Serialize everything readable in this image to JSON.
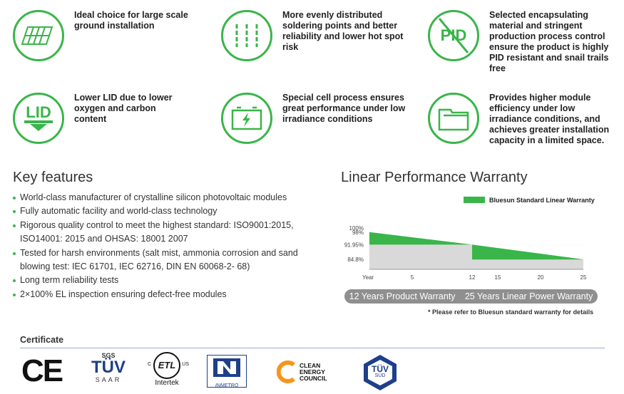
{
  "features": [
    {
      "text": "Ideal choice for large scale ground installation",
      "icon": "panels-icon"
    },
    {
      "text": "More evenly distributed soldering points and better reliability and lower hot spot risk",
      "icon": "solder-lines-icon"
    },
    {
      "text": "Selected encapsulating material and stringent production process control ensure the product is highly PID resistant and snail trails free",
      "icon": "pid-icon",
      "label": "PID"
    },
    {
      "text": "Lower LID due to lower oxygen and carbon content",
      "icon": "lid-icon",
      "label": "LID"
    },
    {
      "text": "Special cell process ensures great performance under low irradiance conditions",
      "icon": "battery-icon"
    },
    {
      "text": "Provides higher module efficiency under low irradiance conditions, and achieves greater installation capacity in a limited space.",
      "icon": "module-stack-icon"
    }
  ],
  "key_features": {
    "title": "Key features",
    "items": [
      "World-class manufacturer of crystalline silicon photovoltaic modules",
      "Fully automatic facility and world-class technology",
      "Rigorous quality control to meet the highest standard: ISO9001:2015, ISO14001: 2015 and OHSAS: 18001 2007",
      "Tested for harsh environments (salt mist, ammonia corrosion and sand blowing test: IEC 61701, IEC 62716, DIN EN 60068-2- 68)",
      "Long term reliability tests",
      "2×100% EL inspection ensuring defect-free modules"
    ]
  },
  "warranty": {
    "title": "Linear Performance Warranty",
    "pill_left": "12 Years Product Warranty",
    "pill_right": "25 Years Linear Power Warranty",
    "note": "* Please refer to Bluesun standard warranty for details"
  },
  "chart_data": {
    "type": "area",
    "xlabel": "Year",
    "x_ticks": [
      5,
      12,
      15,
      20,
      25
    ],
    "xlim": [
      0,
      25
    ],
    "y_ticks": [
      "100%",
      "98%",
      "91.95%",
      "84.8%"
    ],
    "series": [
      {
        "name": "Bluesun Standard Linear Warranty",
        "x": [
          0,
          12,
          12,
          25
        ],
        "y_top": [
          98,
          91.95,
          91.95,
          84.8
        ],
        "y_bottom": [
          91.95,
          91.95,
          84.8,
          84.8
        ]
      }
    ],
    "colors": {
      "green": "#3ab54a",
      "grey": "#d9d9d9"
    }
  },
  "certificate": {
    "title": "Certificate",
    "logos": {
      "ce": "CE",
      "tuv_saar_top": "SGS",
      "tuv_saar_main": "TÜV",
      "tuv_saar_bottom": "SAAR",
      "etl_main": "ETL",
      "etl_c": "C",
      "etl_us": "US",
      "etl_bottom": "Intertek",
      "inmetro": "INMETRO",
      "cec_1": "CLEAN",
      "cec_2": "ENERGY",
      "cec_3": "COUNCIL",
      "tuv_sud_main": "TÜV",
      "tuv_sud_sub": "SÜD"
    }
  }
}
